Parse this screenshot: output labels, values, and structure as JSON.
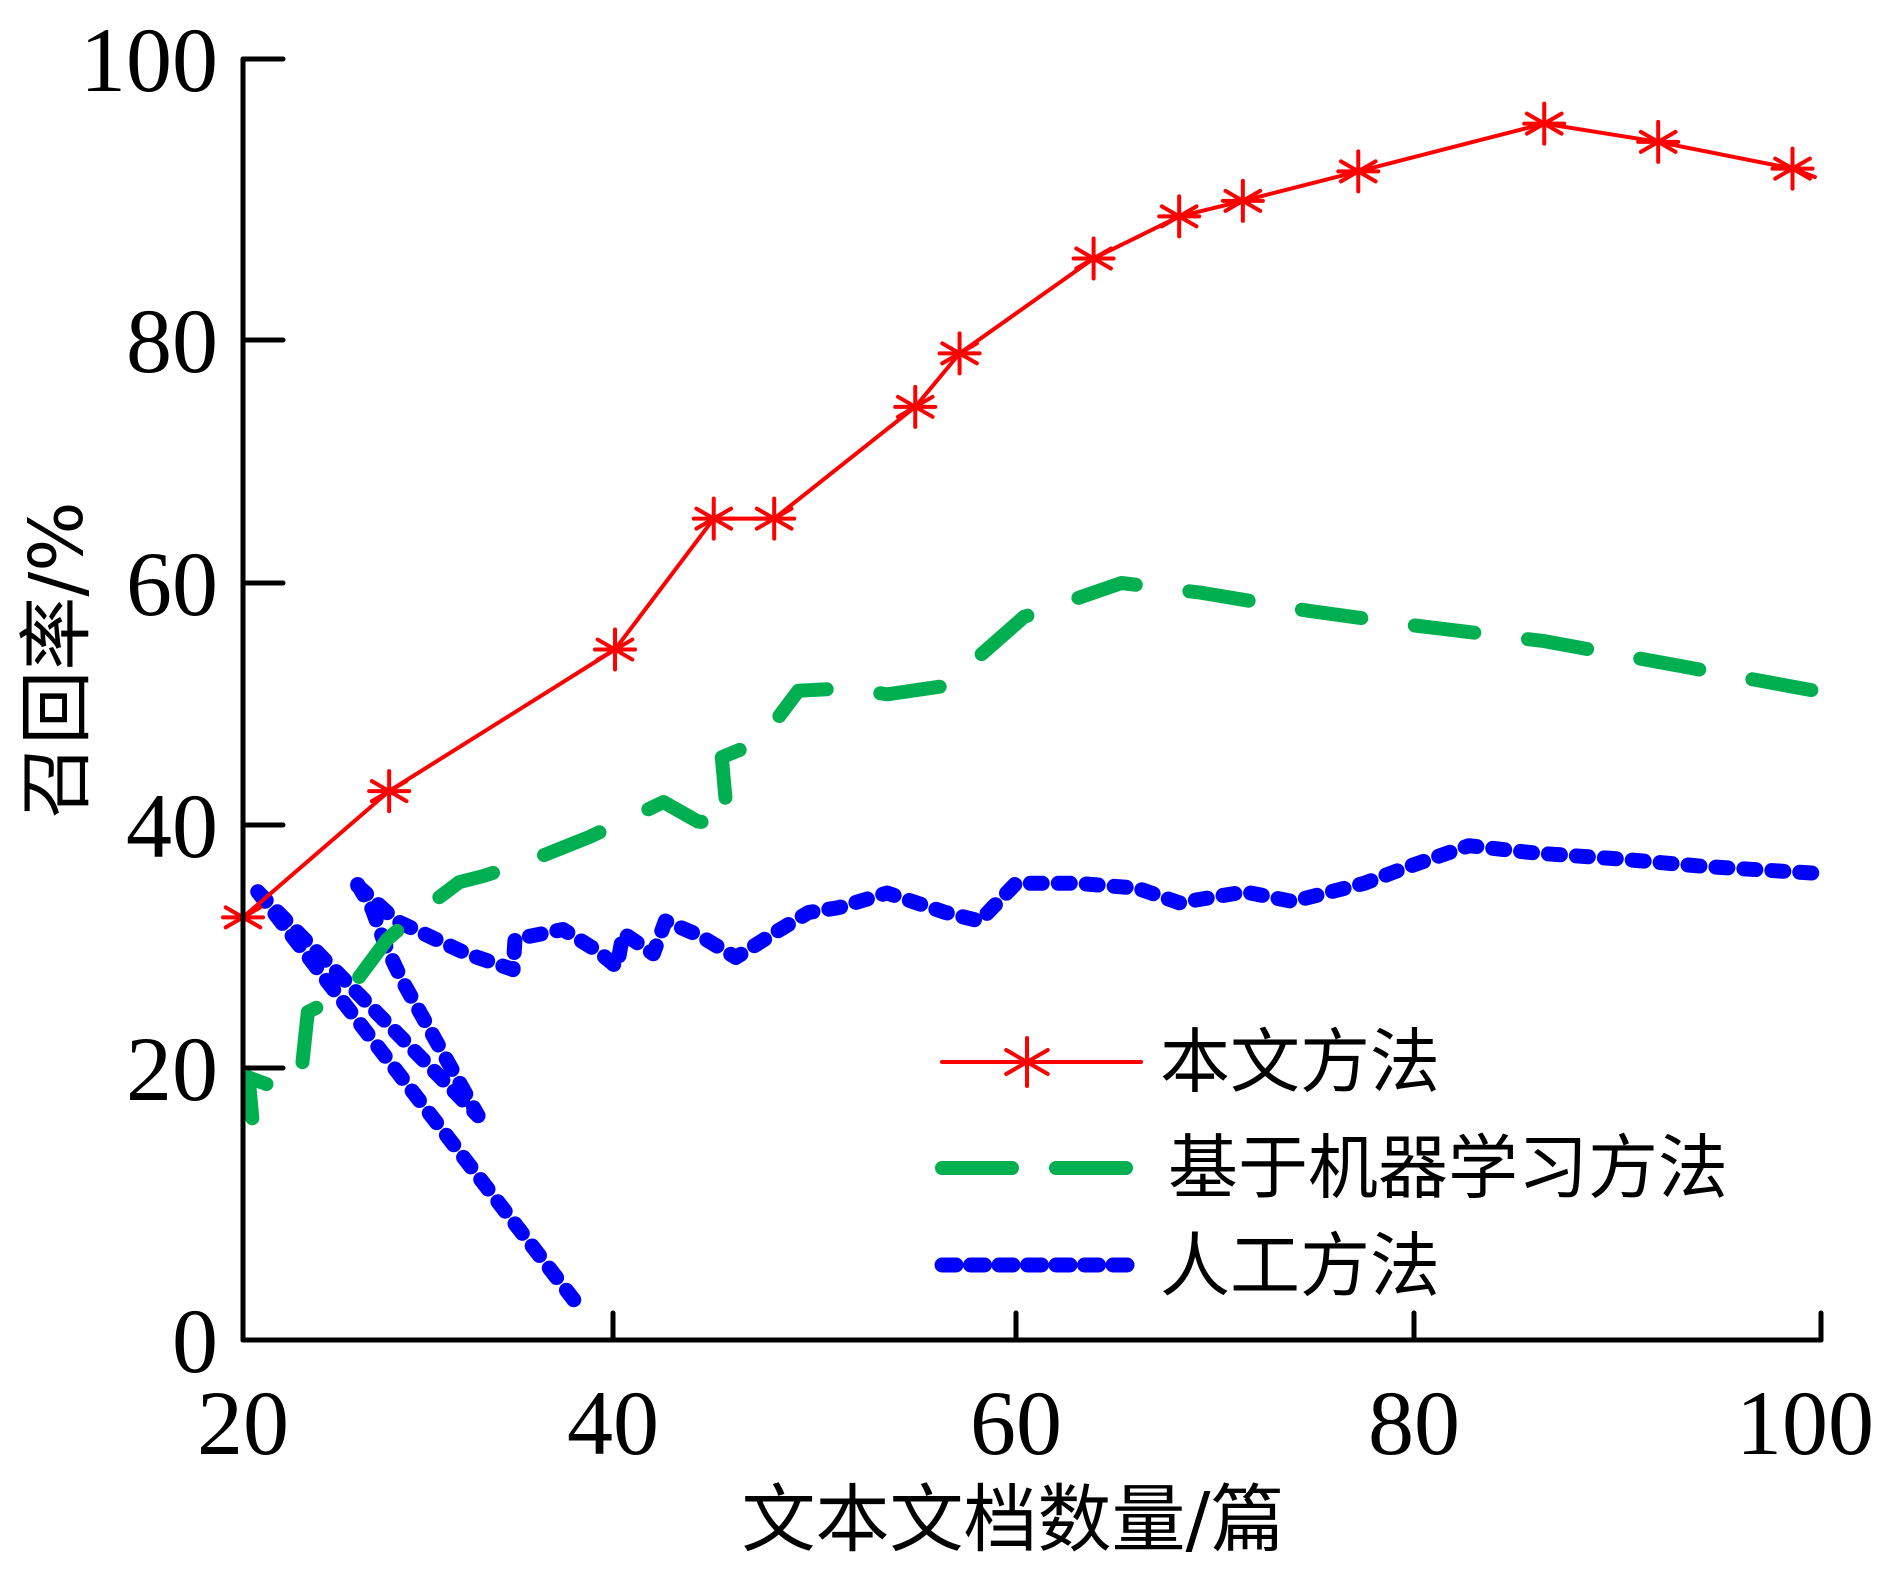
{
  "chart_data": {
    "type": "line",
    "title": "",
    "xlabel": "文本文档数量/篇",
    "ylabel": "召回率/%",
    "xlim": [
      20,
      100
    ],
    "ylim": [
      0,
      100
    ],
    "xticks": [
      "20",
      "40",
      "60",
      "80",
      "100"
    ],
    "yticks": [
      "0",
      "20",
      "40",
      "60",
      "80",
      "100"
    ],
    "grid": false,
    "legend_position": "bottom-right",
    "series": [
      {
        "name": "本文方法",
        "color": "#ff0000",
        "style": "solid",
        "marker": "asterisk",
        "segments": [
          [
            [
              20.0,
              32.4
            ],
            [
              27.9,
              42.8
            ],
            [
              40.1,
              54.5
            ],
            [
              45.0,
              65.3
            ],
            [
              48.0,
              65.3
            ],
            [
              55.0,
              74.5
            ],
            [
              57.2,
              78.9
            ],
            [
              63.9,
              85.8
            ],
            [
              68.2,
              88.8
            ],
            [
              71.4,
              89.9
            ],
            [
              77.2,
              92.0
            ],
            [
              86.4,
              95.4
            ],
            [
              92.0,
              94.1
            ],
            [
              98.6,
              92.2
            ],
            [
              99.7,
              91.6
            ]
          ]
        ],
        "marker_points": [
          [
            20.0,
            32.4
          ],
          [
            27.9,
            42.8
          ],
          [
            40.1,
            54.5
          ],
          [
            45.0,
            65.3
          ],
          [
            48.0,
            65.3
          ],
          [
            55.0,
            74.5
          ],
          [
            57.2,
            78.9
          ],
          [
            63.9,
            85.8
          ],
          [
            68.2,
            88.8
          ],
          [
            71.4,
            89.9
          ],
          [
            77.2,
            92.0
          ],
          [
            86.4,
            95.4
          ],
          [
            92.0,
            94.1
          ],
          [
            98.6,
            92.2
          ]
        ]
      },
      {
        "name": "基于机器学习方法",
        "color": "#00b050",
        "style": "dashed",
        "marker": "none",
        "segments": [
          [
            [
              20.5,
              16.3
            ],
            [
              20.3,
              19.3
            ],
            [
              21.5,
              18.7
            ],
            [
              23.1,
              19.0
            ],
            [
              23.5,
              24.6
            ],
            [
              25.7,
              26.3
            ],
            [
              27.8,
              30.6
            ],
            [
              29.6,
              32.9
            ],
            [
              31.7,
              35.3
            ],
            [
              33.0,
              35.8
            ],
            [
              35.4,
              37.0
            ],
            [
              38.7,
              39.0
            ],
            [
              40.9,
              40.6
            ],
            [
              42.5,
              41.9
            ],
            [
              44.2,
              40.3
            ],
            [
              45.7,
              40.0
            ],
            [
              45.4,
              45.6
            ],
            [
              47.3,
              46.9
            ],
            [
              49.2,
              51.1
            ],
            [
              51.6,
              51.3
            ],
            [
              53.6,
              50.8
            ],
            [
              56.5,
              51.5
            ],
            [
              60.4,
              57.2
            ],
            [
              62.3,
              58.3
            ],
            [
              65.3,
              60.0
            ],
            [
              69.3,
              59.2
            ],
            [
              74.7,
              57.7
            ],
            [
              80.0,
              56.5
            ],
            [
              86.4,
              55.2
            ],
            [
              92.9,
              53.2
            ],
            [
              100.0,
              51.0
            ]
          ]
        ]
      },
      {
        "name": "人工方法",
        "color": "#0000ff",
        "style": "dotted",
        "marker": "none",
        "segments": [
          [
            [
              20.8,
              34.5
            ],
            [
              38.2,
              2.4
            ]
          ],
          [
            [
              20.8,
              34.5
            ],
            [
              32.7,
              16.5
            ]
          ],
          [
            [
              26.2,
              35.1
            ],
            [
              27.0,
              33.0
            ],
            [
              27.7,
              30.1
            ],
            [
              28.6,
              27.2
            ],
            [
              32.7,
              16.5
            ]
          ],
          [
            [
              26.2,
              35.0
            ],
            [
              28.3,
              32.1
            ],
            [
              32.1,
              29.4
            ],
            [
              34.6,
              28.1
            ],
            [
              34.7,
              30.6
            ],
            [
              37.3,
              31.4
            ],
            [
              39.2,
              29.6
            ],
            [
              40.2,
              28.3
            ],
            [
              40.5,
              31.1
            ],
            [
              42.0,
              29.4
            ],
            [
              42.6,
              32.1
            ],
            [
              44.3,
              30.9
            ],
            [
              46.1,
              29.1
            ],
            [
              48.2,
              31.3
            ],
            [
              49.7,
              32.8
            ],
            [
              51.2,
              33.2
            ],
            [
              53.6,
              34.4
            ],
            [
              56.5,
              32.8
            ],
            [
              58.2,
              32.1
            ],
            [
              60.0,
              35.2
            ],
            [
              63.1,
              35.2
            ],
            [
              66.1,
              34.8
            ],
            [
              68.2,
              33.6
            ],
            [
              71.5,
              34.5
            ],
            [
              73.9,
              33.7
            ],
            [
              77.5,
              35.2
            ],
            [
              79.6,
              36.5
            ],
            [
              82.7,
              38.3
            ],
            [
              85.9,
              37.7
            ],
            [
              90.1,
              37.2
            ],
            [
              94.2,
              36.6
            ],
            [
              100.0,
              36.0
            ]
          ]
        ]
      }
    ]
  }
}
